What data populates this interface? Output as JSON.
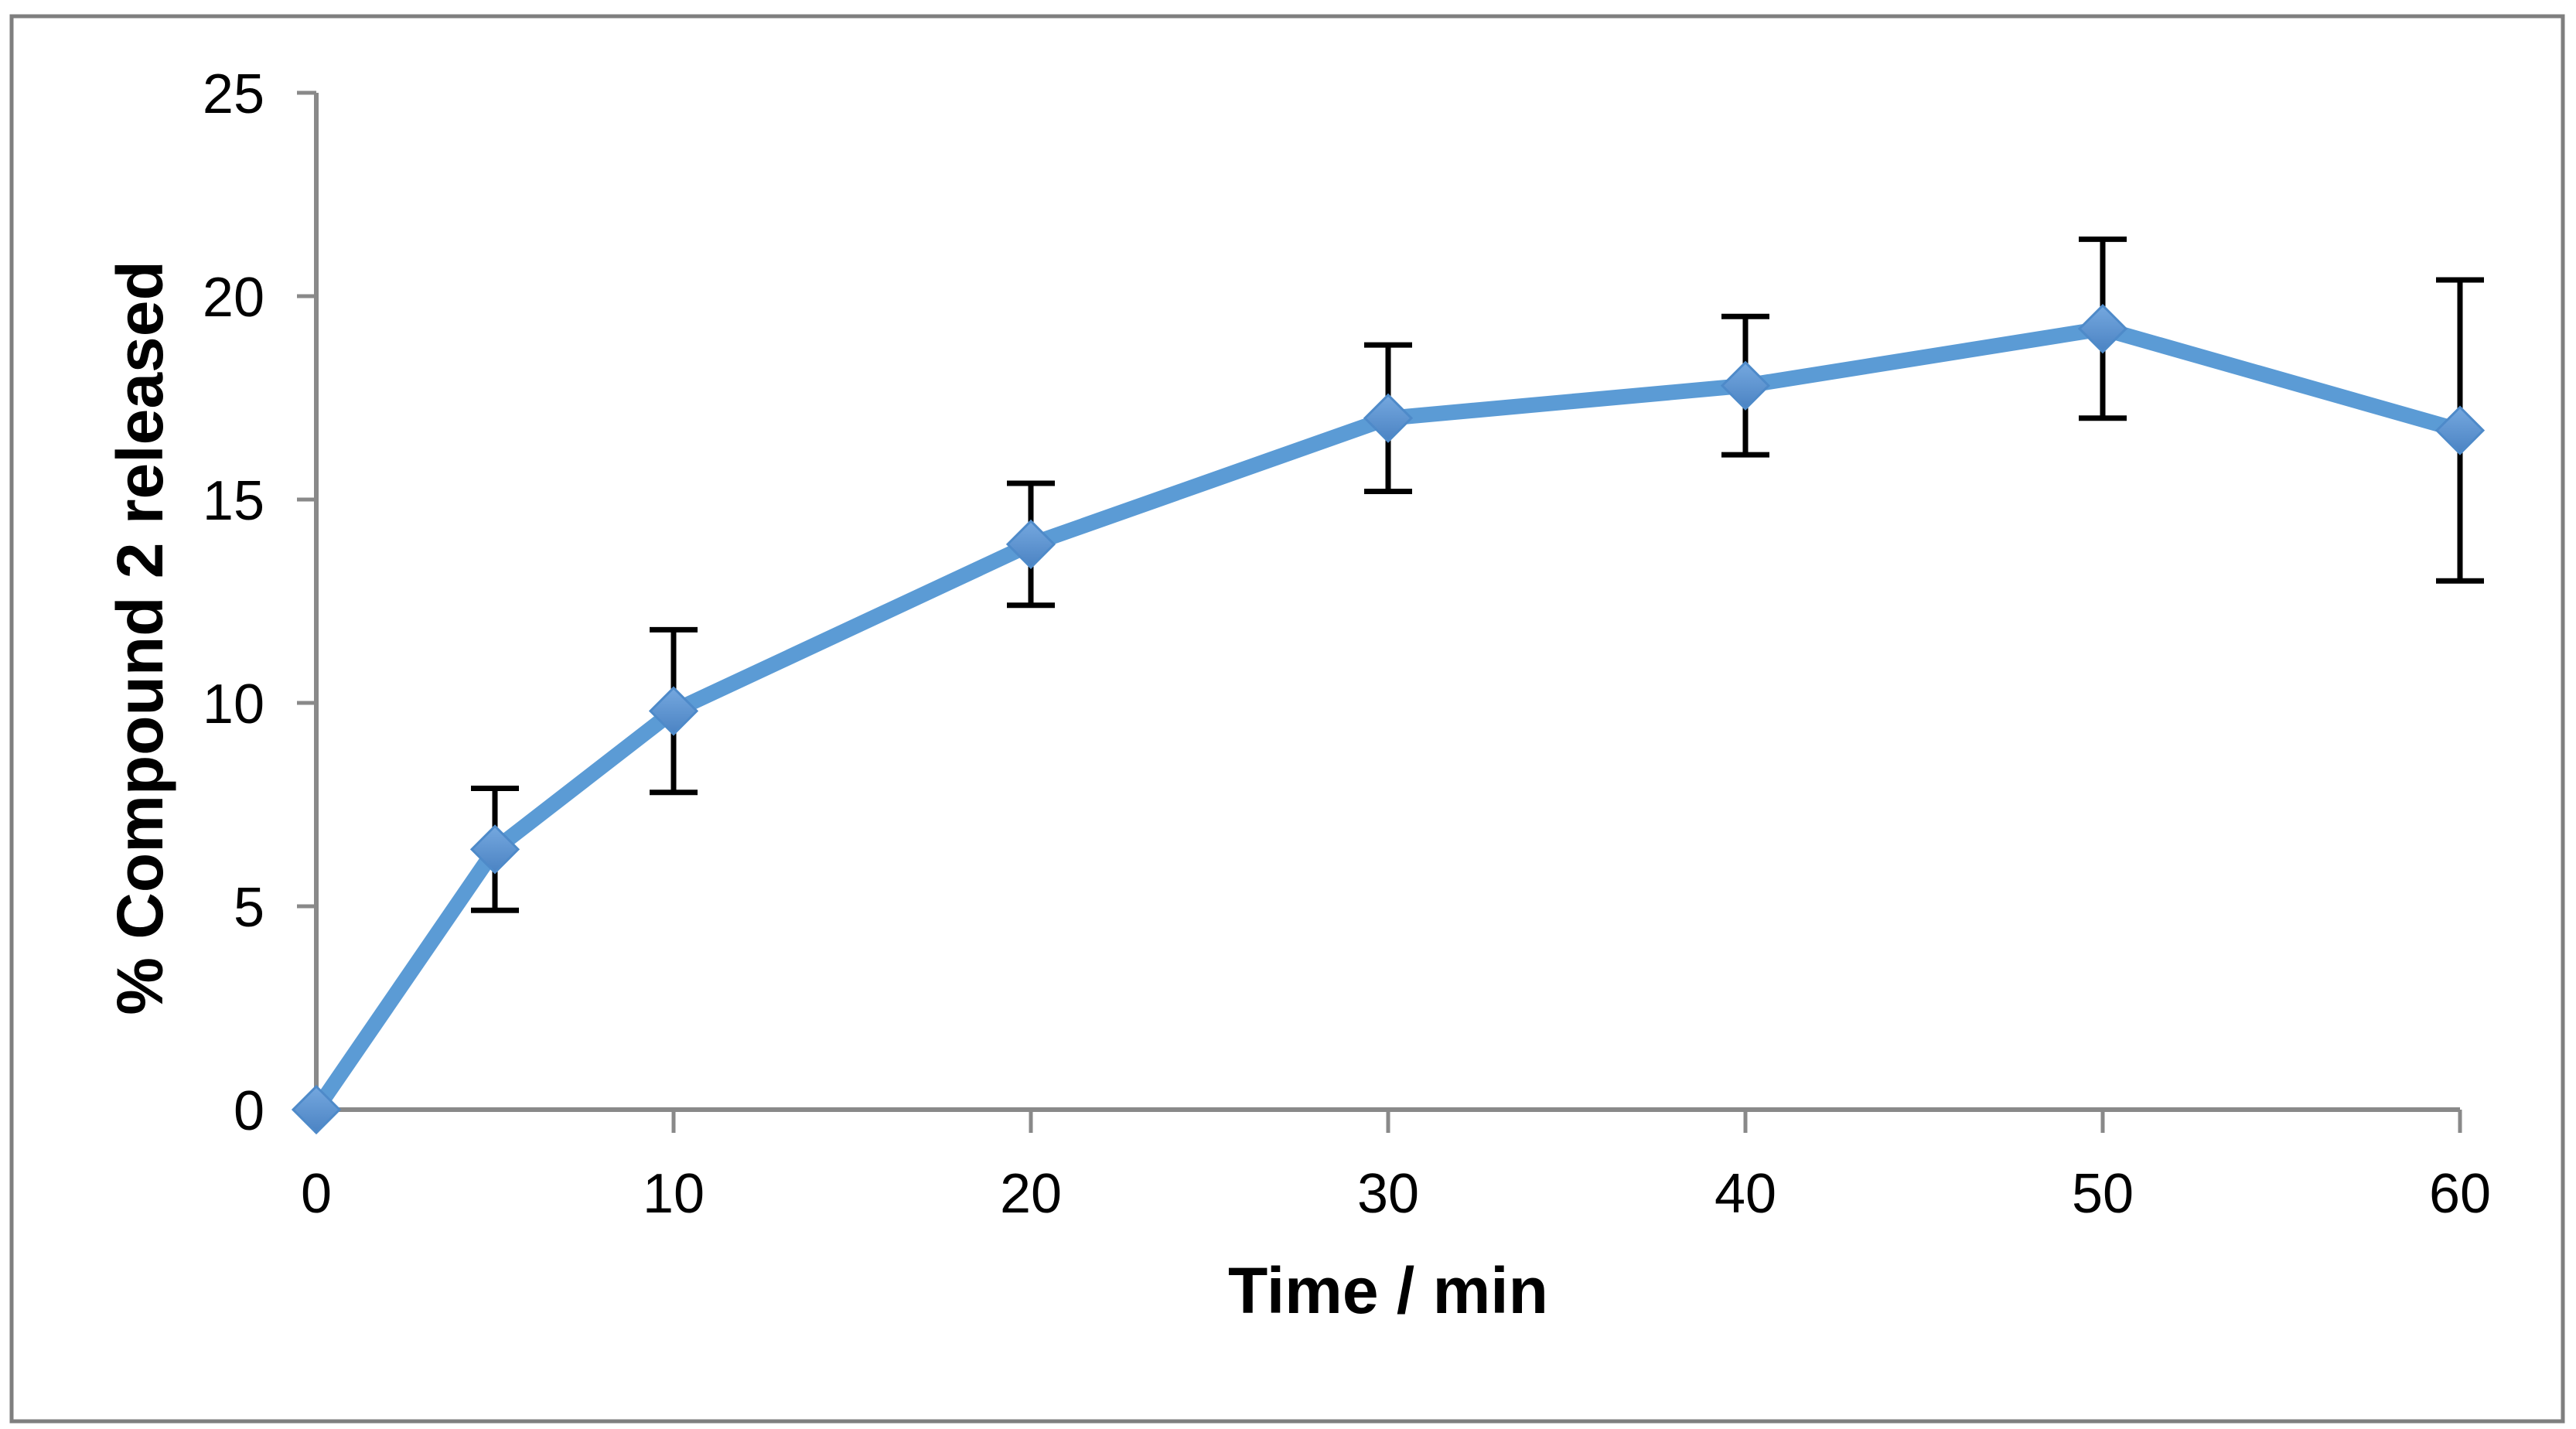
{
  "figure": {
    "background": "#FFFFFF",
    "border_color": "#7F7F7F"
  },
  "chart_data": {
    "type": "line",
    "title": "",
    "xlabel": "Time / min",
    "ylabel": "% Compound 2 released",
    "x": [
      0,
      5,
      10,
      20,
      30,
      40,
      50,
      60
    ],
    "series": [
      {
        "name": "% Compound 2 released",
        "values": [
          0.0,
          6.4,
          9.8,
          13.9,
          17.0,
          17.8,
          19.2,
          16.7
        ],
        "error_bars": [
          0,
          1.5,
          2.0,
          1.5,
          1.8,
          1.7,
          2.2,
          3.7
        ]
      }
    ],
    "x_axis": {
      "min": 0,
      "max": 60,
      "tick_values": [
        0,
        10,
        20,
        30,
        40,
        50,
        60
      ],
      "tick_labels": [
        "0",
        "10",
        "20",
        "30",
        "40",
        "50",
        "60"
      ]
    },
    "y_axis": {
      "min": 0,
      "max": 25,
      "tick_values": [
        0,
        5,
        10,
        15,
        20,
        25
      ],
      "tick_labels": [
        "0",
        "5",
        "10",
        "15",
        "20",
        "25"
      ]
    },
    "grid": false,
    "legend": false,
    "marker": "diamond",
    "colors": {
      "line": "#5B9BD5",
      "marker_gradient_top": "#75A8DF",
      "marker_gradient_bottom": "#4B83C3",
      "marker_edge": "#4E8AC9",
      "error_bar": "#000000",
      "axis": "#898989",
      "text": "#000000"
    }
  }
}
